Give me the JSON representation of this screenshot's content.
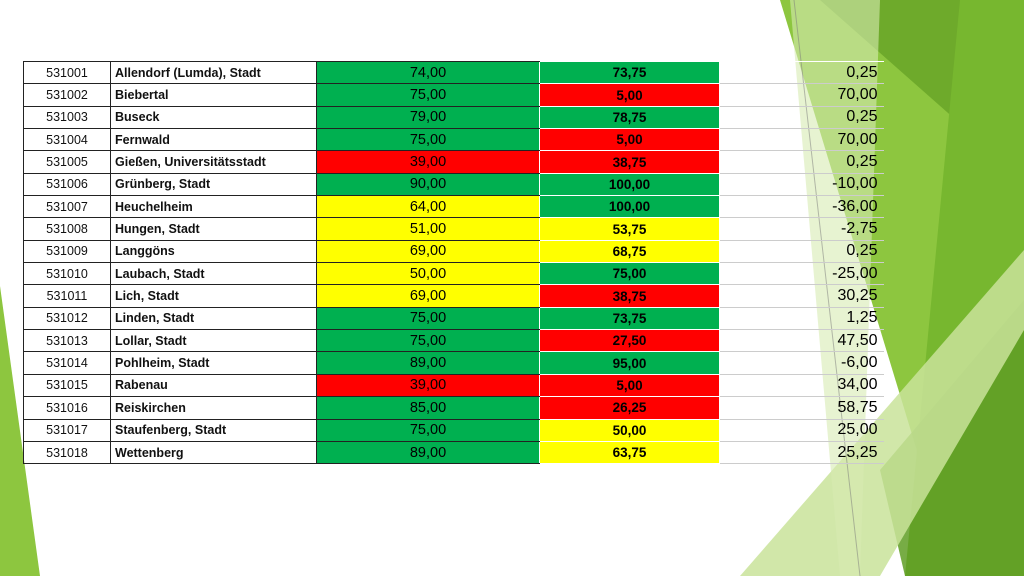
{
  "colors": {
    "green": "#00b050",
    "red": "#ff0000",
    "yellow": "#ffff00",
    "accent": "#8dc63f"
  },
  "rows": [
    {
      "code": "531001",
      "name": "Allendorf (Lumda), Stadt",
      "v1": "74,00",
      "c1": "g",
      "v2": "73,75",
      "c2": "g",
      "diff": "0,25"
    },
    {
      "code": "531002",
      "name": "Biebertal",
      "v1": "75,00",
      "c1": "g",
      "v2": "5,00",
      "c2": "r",
      "diff": "70,00"
    },
    {
      "code": "531003",
      "name": "Buseck",
      "v1": "79,00",
      "c1": "g",
      "v2": "78,75",
      "c2": "g",
      "diff": "0,25"
    },
    {
      "code": "531004",
      "name": "Fernwald",
      "v1": "75,00",
      "c1": "g",
      "v2": "5,00",
      "c2": "r",
      "diff": "70,00"
    },
    {
      "code": "531005",
      "name": "Gießen, Universitätsstadt",
      "v1": "39,00",
      "c1": "r",
      "v2": "38,75",
      "c2": "r",
      "diff": "0,25"
    },
    {
      "code": "531006",
      "name": "Grünberg, Stadt",
      "v1": "90,00",
      "c1": "g",
      "v2": "100,00",
      "c2": "g",
      "diff": "-10,00"
    },
    {
      "code": "531007",
      "name": "Heuchelheim",
      "v1": "64,00",
      "c1": "y",
      "v2": "100,00",
      "c2": "g",
      "diff": "-36,00"
    },
    {
      "code": "531008",
      "name": "Hungen, Stadt",
      "v1": "51,00",
      "c1": "y",
      "v2": "53,75",
      "c2": "y",
      "diff": "-2,75"
    },
    {
      "code": "531009",
      "name": "Langgöns",
      "v1": "69,00",
      "c1": "y",
      "v2": "68,75",
      "c2": "y",
      "diff": "0,25"
    },
    {
      "code": "531010",
      "name": "Laubach, Stadt",
      "v1": "50,00",
      "c1": "y",
      "v2": "75,00",
      "c2": "g",
      "diff": "-25,00"
    },
    {
      "code": "531011",
      "name": "Lich, Stadt",
      "v1": "69,00",
      "c1": "y",
      "v2": "38,75",
      "c2": "r",
      "diff": "30,25"
    },
    {
      "code": "531012",
      "name": "Linden, Stadt",
      "v1": "75,00",
      "c1": "g",
      "v2": "73,75",
      "c2": "g",
      "diff": "1,25"
    },
    {
      "code": "531013",
      "name": "Lollar, Stadt",
      "v1": "75,00",
      "c1": "g",
      "v2": "27,50",
      "c2": "r",
      "diff": "47,50"
    },
    {
      "code": "531014",
      "name": "Pohlheim, Stadt",
      "v1": "89,00",
      "c1": "g",
      "v2": "95,00",
      "c2": "g",
      "diff": "-6,00"
    },
    {
      "code": "531015",
      "name": "Rabenau",
      "v1": "39,00",
      "c1": "r",
      "v2": "5,00",
      "c2": "r",
      "diff": "34,00"
    },
    {
      "code": "531016",
      "name": "Reiskirchen",
      "v1": "85,00",
      "c1": "g",
      "v2": "26,25",
      "c2": "r",
      "diff": "58,75"
    },
    {
      "code": "531017",
      "name": "Staufenberg, Stadt",
      "v1": "75,00",
      "c1": "g",
      "v2": "50,00",
      "c2": "y",
      "diff": "25,00"
    },
    {
      "code": "531018",
      "name": "Wettenberg",
      "v1": "89,00",
      "c1": "g",
      "v2": "63,75",
      "c2": "y",
      "diff": "25,25"
    }
  ]
}
